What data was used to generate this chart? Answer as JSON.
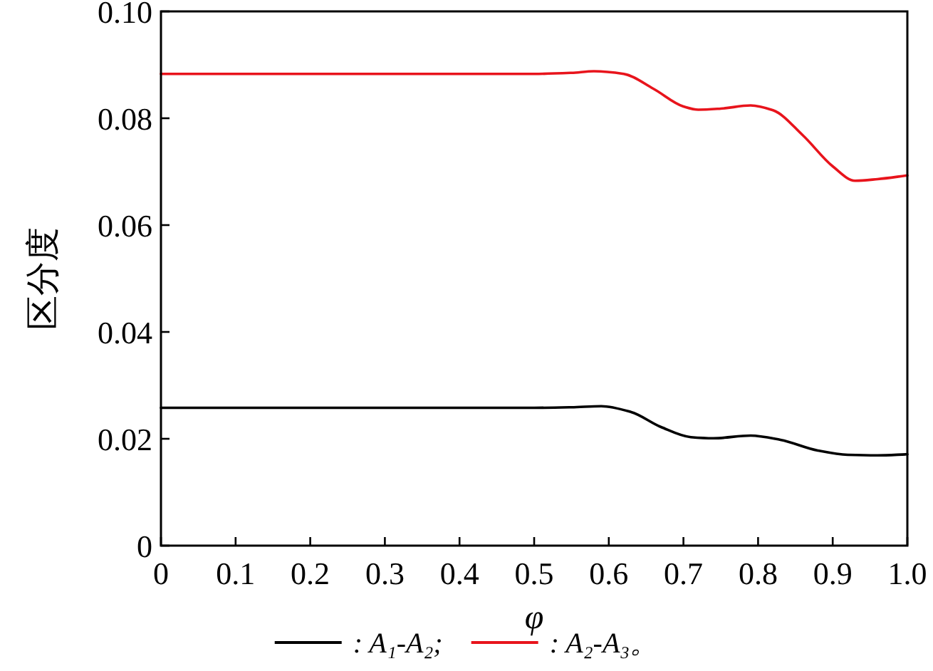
{
  "chart_data": {
    "type": "line",
    "xlabel": "φ",
    "ylabel": "区分度",
    "xlim": [
      0,
      1
    ],
    "ylim": [
      0,
      0.1
    ],
    "xticks": [
      0,
      0.1,
      0.2,
      0.3,
      0.4,
      0.5,
      0.6,
      0.7,
      0.8,
      0.9,
      {
        "value": 1,
        "label": "1.0"
      }
    ],
    "yticks": [
      0,
      0.02,
      0.04,
      0.06,
      0.08,
      {
        "value": 0.1,
        "label": "0.10"
      }
    ],
    "grid": false,
    "legend": "bottom",
    "marker": "none",
    "line_style": "solid",
    "series": [
      {
        "name": ": A₁-A₂;",
        "color": "#000000",
        "x": [
          0,
          0.1,
          0.2,
          0.3,
          0.4,
          0.5,
          0.55,
          0.59,
          0.63,
          0.67,
          0.71,
          0.74,
          0.79,
          0.83,
          0.88,
          0.92,
          0.96,
          1.0
        ],
        "values": [
          0.0258,
          0.0258,
          0.0258,
          0.0258,
          0.0258,
          0.0258,
          0.0259,
          0.0261,
          0.025,
          0.0222,
          0.0203,
          0.0201,
          0.0206,
          0.0198,
          0.0178,
          0.017,
          0.0169,
          0.0171
        ]
      },
      {
        "name": ": A₂-A₃。",
        "color": "#e8141c",
        "x": [
          0,
          0.1,
          0.2,
          0.3,
          0.4,
          0.5,
          0.55,
          0.58,
          0.62,
          0.66,
          0.7,
          0.72,
          0.75,
          0.79,
          0.82,
          0.86,
          0.9,
          0.93,
          0.96,
          1.0
        ],
        "values": [
          0.0883,
          0.0883,
          0.0883,
          0.0883,
          0.0883,
          0.0883,
          0.0885,
          0.0888,
          0.0883,
          0.0855,
          0.0822,
          0.0816,
          0.0818,
          0.0824,
          0.0815,
          0.0768,
          0.071,
          0.0683,
          0.0686,
          0.0693
        ]
      }
    ]
  }
}
